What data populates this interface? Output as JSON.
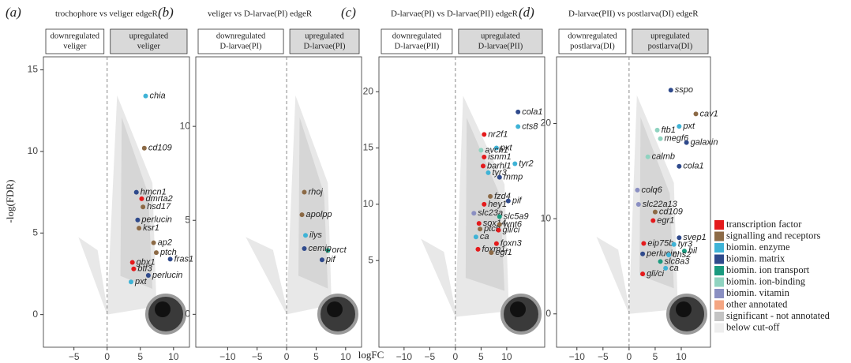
{
  "x_label": "logFC",
  "y_label": "-log(FDR)",
  "legend": [
    {
      "name": "transcription factor",
      "color": "#e41a1c"
    },
    {
      "name": "signalling and receptors",
      "color": "#8c6a46"
    },
    {
      "name": "biomin. enzyme",
      "color": "#3fb3d6"
    },
    {
      "name": "biomin. matrix",
      "color": "#2f4a8c"
    },
    {
      "name": "biomin. ion transport",
      "color": "#1a9a7f"
    },
    {
      "name": "biomin. ion-binding",
      "color": "#8fd3c0"
    },
    {
      "name": "biomin. vitamin",
      "color": "#8a8fc2"
    },
    {
      "name": "other annotated",
      "color": "#f4a582"
    },
    {
      "name": "significant - not annotated",
      "color": "#c4c4c4"
    },
    {
      "name": "below cut-off",
      "color": "#eeeeee"
    }
  ],
  "chart_data": [
    {
      "type": "volcano",
      "letter": "(a)",
      "title": "trochophore vs veliger edgeR",
      "strips": [
        [
          "downregulated",
          "veliger"
        ],
        [
          "upregulated",
          "veliger"
        ]
      ],
      "xlim": [
        -9.6,
        12.4
      ],
      "ylim": [
        -2,
        15.8
      ],
      "xticks": [
        {
          "value": -5,
          "label": "−5"
        },
        0,
        5,
        10
      ],
      "yticks": [
        0,
        5,
        10,
        15
      ],
      "genes": [
        {
          "name": "chia",
          "x": 5.8,
          "y": 13.4,
          "color": "#3fb3d6"
        },
        {
          "name": "cd109",
          "x": 5.6,
          "y": 10.2,
          "color": "#8c6a46"
        },
        {
          "name": "hmcn1",
          "x": 4.4,
          "y": 7.5,
          "color": "#2f4a8c"
        },
        {
          "name": "dmrta2",
          "x": 5.2,
          "y": 7.1,
          "color": "#e41a1c"
        },
        {
          "name": "hsd17",
          "x": 5.4,
          "y": 6.6,
          "color": "#8c6a46"
        },
        {
          "name": "perlucin",
          "x": 4.6,
          "y": 5.8,
          "color": "#2f4a8c"
        },
        {
          "name": "ksr1",
          "x": 4.8,
          "y": 5.3,
          "color": "#8c6a46"
        },
        {
          "name": "ap2",
          "x": 7.0,
          "y": 4.4,
          "color": "#8c6a46"
        },
        {
          "name": "ptch",
          "x": 7.4,
          "y": 3.8,
          "color": "#8c6a46"
        },
        {
          "name": "gbx1",
          "x": 3.8,
          "y": 3.2,
          "color": "#e41a1c"
        },
        {
          "name": "btf3",
          "x": 4.0,
          "y": 2.8,
          "color": "#e41a1c"
        },
        {
          "name": "fras1",
          "x": 9.5,
          "y": 3.4,
          "color": "#2f4a8c"
        },
        {
          "name": "perlucin",
          "x": 6.2,
          "y": 2.4,
          "color": "#2f4a8c"
        },
        {
          "name": "pxt",
          "x": 3.6,
          "y": 2.0,
          "color": "#3fb3d6"
        }
      ]
    },
    {
      "type": "volcano",
      "letter": "(b)",
      "title": "veliger vs D-larvae(PI) edgeR",
      "strips": [
        [
          "downregulated",
          "D-larvae(PI)"
        ],
        [
          "upregulated",
          "D-larvae(PI)"
        ]
      ],
      "xlim": [
        -15.4,
        12.7
      ],
      "ylim": [
        -1.75,
        13.7
      ],
      "xticks": [
        {
          "value": -10,
          "label": "−10"
        },
        {
          "value": -5,
          "label": "−5"
        },
        0,
        5,
        10
      ],
      "yticks": [
        0,
        5,
        10
      ],
      "genes": [
        {
          "name": "rhoj",
          "x": 3.0,
          "y": 6.5,
          "color": "#8c6a46"
        },
        {
          "name": "apolpp",
          "x": 2.6,
          "y": 5.3,
          "color": "#8c6a46"
        },
        {
          "name": "ilys",
          "x": 3.2,
          "y": 4.2,
          "color": "#3fb3d6"
        },
        {
          "name": "orct",
          "x": 7.0,
          "y": 3.4,
          "color": "#1a9a7f"
        },
        {
          "name": "cemip",
          "x": 3.0,
          "y": 3.5,
          "color": "#2f4a8c"
        },
        {
          "name": "pif",
          "x": 6.0,
          "y": 2.9,
          "color": "#2f4a8c"
        }
      ]
    },
    {
      "type": "volcano",
      "letter": "(c)",
      "title": "D-larvae(PI) vs D-larvae(PII) edgeR",
      "strips": [
        [
          "downregulated",
          "D-larvae(PII)"
        ],
        [
          "upregulated",
          "D-larvae(PII)"
        ]
      ],
      "xlim": [
        -14.9,
        17.4
      ],
      "ylim": [
        -2.7,
        23.1
      ],
      "xticks": [
        {
          "value": -10,
          "label": "−10"
        },
        {
          "value": -5,
          "label": "−5"
        },
        0,
        5,
        10
      ],
      "yticks": [
        5,
        10,
        15,
        20
      ],
      "genes": [
        {
          "name": "cola1",
          "x": 12.2,
          "y": 18.2,
          "color": "#2f4a8c"
        },
        {
          "name": "cts8",
          "x": 12.2,
          "y": 16.9,
          "color": "#3fb3d6"
        },
        {
          "name": "nr2f1",
          "x": 5.6,
          "y": 16.2,
          "color": "#e41a1c"
        },
        {
          "name": "pxt",
          "x": 8.0,
          "y": 15.0,
          "color": "#3fb3d6"
        },
        {
          "name": "avch1",
          "x": 5.0,
          "y": 14.8,
          "color": "#8fd3c0"
        },
        {
          "name": "isnm1",
          "x": 5.6,
          "y": 14.2,
          "color": "#e41a1c"
        },
        {
          "name": "tyr2",
          "x": 11.6,
          "y": 13.6,
          "color": "#3fb3d6"
        },
        {
          "name": "barhl1",
          "x": 5.4,
          "y": 13.4,
          "color": "#e41a1c"
        },
        {
          "name": "tyr3",
          "x": 6.4,
          "y": 12.8,
          "color": "#3fb3d6"
        },
        {
          "name": "mmp",
          "x": 8.6,
          "y": 12.4,
          "color": "#2f4a8c"
        },
        {
          "name": "fzd4",
          "x": 6.8,
          "y": 10.7,
          "color": "#8c6a46"
        },
        {
          "name": "pif",
          "x": 10.3,
          "y": 10.3,
          "color": "#2f4a8c"
        },
        {
          "name": "hey1",
          "x": 5.6,
          "y": 10.0,
          "color": "#e41a1c"
        },
        {
          "name": "slc23a",
          "x": 3.6,
          "y": 9.2,
          "color": "#8a8fc2"
        },
        {
          "name": "slc5a9",
          "x": 8.6,
          "y": 8.9,
          "color": "#1a9a7f"
        },
        {
          "name": "sox14",
          "x": 4.6,
          "y": 8.3,
          "color": "#e41a1c"
        },
        {
          "name": "wnt6",
          "x": 8.6,
          "y": 8.2,
          "color": "#8c6a46"
        },
        {
          "name": "ptch",
          "x": 4.8,
          "y": 7.8,
          "color": "#8c6a46"
        },
        {
          "name": "gli/ci",
          "x": 8.4,
          "y": 7.7,
          "color": "#e41a1c"
        },
        {
          "name": "ca",
          "x": 4.0,
          "y": 7.1,
          "color": "#3fb3d6"
        },
        {
          "name": "foxn3",
          "x": 8.0,
          "y": 6.5,
          "color": "#e41a1c"
        },
        {
          "name": "foxm1",
          "x": 4.4,
          "y": 6.0,
          "color": "#e41a1c"
        },
        {
          "name": "egf1",
          "x": 7.0,
          "y": 5.7,
          "color": "#8c6a46"
        }
      ]
    },
    {
      "type": "volcano",
      "letter": "(d)",
      "title": "D-larvae(PII) vs postlarva(DI) edgeR",
      "strips": [
        [
          "downregulated",
          "postlarva(DI)"
        ],
        [
          "upregulated",
          "postlarva(DI)"
        ]
      ],
      "xlim": [
        -13.9,
        15.6
      ],
      "ylim": [
        -3.5,
        27
      ],
      "xticks": [
        {
          "value": -10,
          "label": "−10"
        },
        {
          "value": -5,
          "label": "−5"
        },
        0,
        5,
        10
      ],
      "yticks": [
        0,
        10,
        20
      ],
      "genes": [
        {
          "name": "sspo",
          "x": 8.0,
          "y": 23.5,
          "color": "#2f4a8c"
        },
        {
          "name": "cav1",
          "x": 12.8,
          "y": 21.0,
          "color": "#8c6a46"
        },
        {
          "name": "pxt",
          "x": 9.6,
          "y": 19.7,
          "color": "#3fb3d6"
        },
        {
          "name": "ftb1",
          "x": 5.4,
          "y": 19.3,
          "color": "#8fd3c0"
        },
        {
          "name": "megf6",
          "x": 6.0,
          "y": 18.4,
          "color": "#8fd3c0"
        },
        {
          "name": "galaxin",
          "x": 11.0,
          "y": 18.0,
          "color": "#2f4a8c"
        },
        {
          "name": "calmb",
          "x": 3.6,
          "y": 16.5,
          "color": "#8fd3c0"
        },
        {
          "name": "cola1",
          "x": 9.6,
          "y": 15.5,
          "color": "#2f4a8c"
        },
        {
          "name": "colq6",
          "x": 1.6,
          "y": 13.0,
          "color": "#8a8fc2"
        },
        {
          "name": "slc22a13",
          "x": 1.8,
          "y": 11.5,
          "color": "#8a8fc2"
        },
        {
          "name": "cd109",
          "x": 5.0,
          "y": 10.7,
          "color": "#8c6a46"
        },
        {
          "name": "egr1",
          "x": 4.6,
          "y": 9.8,
          "color": "#e41a1c"
        },
        {
          "name": "svep1",
          "x": 9.6,
          "y": 8.0,
          "color": "#2f4a8c"
        },
        {
          "name": "eip75b",
          "x": 2.8,
          "y": 7.4,
          "color": "#e41a1c"
        },
        {
          "name": "tyr3",
          "x": 8.6,
          "y": 7.3,
          "color": "#3fb3d6"
        },
        {
          "name": "hil",
          "x": 10.6,
          "y": 6.6,
          "color": "#1a9a7f"
        },
        {
          "name": "perlucin",
          "x": 2.6,
          "y": 6.3,
          "color": "#2f4a8c"
        },
        {
          "name": "chs2",
          "x": 7.6,
          "y": 6.2,
          "color": "#3fb3d6"
        },
        {
          "name": "slc8a3",
          "x": 6.0,
          "y": 5.5,
          "color": "#1a9a7f"
        },
        {
          "name": "ca",
          "x": 7.0,
          "y": 4.8,
          "color": "#3fb3d6"
        },
        {
          "name": "gli/ci",
          "x": 2.6,
          "y": 4.2,
          "color": "#e41a1c"
        }
      ]
    }
  ]
}
